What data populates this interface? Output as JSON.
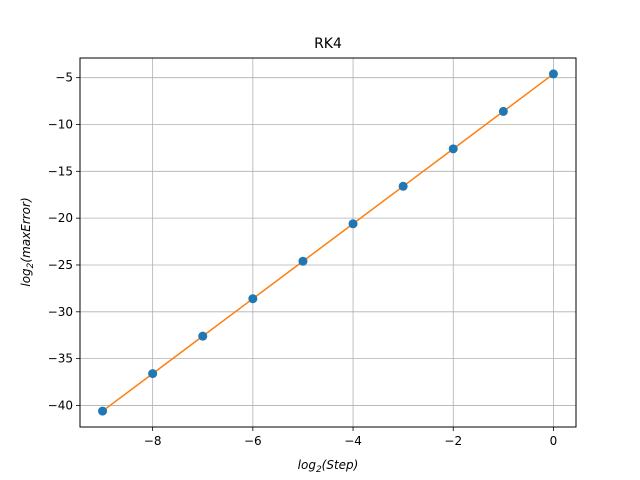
{
  "chart_data": {
    "type": "line",
    "title": "RK4",
    "xlabel": {
      "base": "log",
      "sub": "2",
      "arg": "(Step)"
    },
    "ylabel": {
      "base": "log",
      "sub": "2",
      "arg": "(maxError)"
    },
    "xlim": [
      -9.45,
      0.45
    ],
    "ylim": [
      -42.3,
      -2.9
    ],
    "xticks": [
      -8,
      -6,
      -4,
      -2,
      0
    ],
    "xtick_labels": [
      "−8",
      "−6",
      "−4",
      "−2",
      "0"
    ],
    "yticks": [
      -40,
      -35,
      -30,
      -25,
      -20,
      -15,
      -10,
      -5
    ],
    "ytick_labels": [
      "−40",
      "−35",
      "−30",
      "−25",
      "−20",
      "−15",
      "−10",
      "−5"
    ],
    "grid": true,
    "series": [
      {
        "kind": "scatter",
        "color": "#1f77b4",
        "x": [
          -9,
          -8,
          -7,
          -6,
          -5,
          -4,
          -3,
          -2,
          -1,
          0
        ],
        "y": [
          -40.6,
          -36.6,
          -32.6,
          -28.6,
          -24.6,
          -20.6,
          -16.6,
          -12.6,
          -8.6,
          -4.6
        ]
      },
      {
        "kind": "line",
        "color": "#ff7f0e",
        "x": [
          -9,
          -8,
          -7,
          -6,
          -5,
          -4,
          -3,
          -2,
          -1,
          0
        ],
        "y": [
          -40.6,
          -36.6,
          -32.6,
          -28.6,
          -24.6,
          -20.6,
          -16.6,
          -12.6,
          -8.6,
          -4.6
        ]
      }
    ]
  }
}
